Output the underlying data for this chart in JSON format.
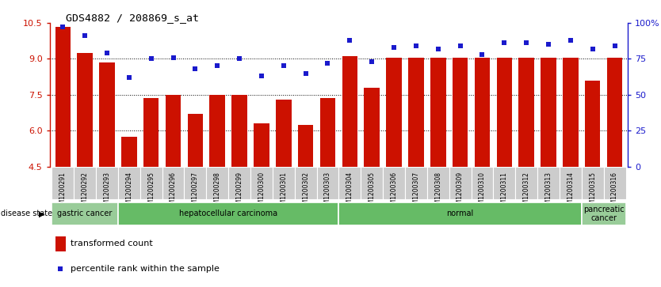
{
  "title": "GDS4882 / 208869_s_at",
  "samples": [
    "GSM1200291",
    "GSM1200292",
    "GSM1200293",
    "GSM1200294",
    "GSM1200295",
    "GSM1200296",
    "GSM1200297",
    "GSM1200298",
    "GSM1200299",
    "GSM1200300",
    "GSM1200301",
    "GSM1200302",
    "GSM1200303",
    "GSM1200304",
    "GSM1200305",
    "GSM1200306",
    "GSM1200307",
    "GSM1200308",
    "GSM1200309",
    "GSM1200310",
    "GSM1200311",
    "GSM1200312",
    "GSM1200313",
    "GSM1200314",
    "GSM1200315",
    "GSM1200316"
  ],
  "transformed_count": [
    10.35,
    9.25,
    8.85,
    5.75,
    7.35,
    7.5,
    6.7,
    7.5,
    7.5,
    6.3,
    7.3,
    6.25,
    7.35,
    9.1,
    7.8,
    9.05,
    9.05,
    9.05,
    9.05,
    9.05,
    9.05,
    9.05,
    9.05,
    9.05,
    8.1,
    9.05
  ],
  "percentile_rank": [
    97,
    91,
    79,
    62,
    75,
    76,
    68,
    70,
    75,
    63,
    70,
    65,
    72,
    88,
    73,
    83,
    84,
    82,
    84,
    78,
    86,
    86,
    85,
    88,
    82,
    84
  ],
  "ylim_left": [
    4.5,
    10.5
  ],
  "ylim_right": [
    0,
    100
  ],
  "yticks_left": [
    4.5,
    6.0,
    7.5,
    9.0,
    10.5
  ],
  "yticks_right": [
    0,
    25,
    50,
    75,
    100
  ],
  "ytick_labels_right": [
    "0",
    "25",
    "50",
    "75",
    "100%"
  ],
  "bar_color": "#cc1100",
  "dot_color": "#1a1acc",
  "disease_groups": [
    {
      "label": "gastric cancer",
      "start": 0,
      "end": 3,
      "color": "#99cc99"
    },
    {
      "label": "hepatocellular carcinoma",
      "start": 3,
      "end": 13,
      "color": "#66bb66"
    },
    {
      "label": "normal",
      "start": 13,
      "end": 24,
      "color": "#66bb66"
    },
    {
      "label": "pancreatic\ncancer",
      "start": 24,
      "end": 26,
      "color": "#99cc99"
    }
  ],
  "legend_bar_label": "transformed count",
  "legend_dot_label": "percentile rank within the sample",
  "xlabel_disease": "disease state",
  "background_color": "#ffffff",
  "plot_bg_color": "#ffffff",
  "tick_label_bg": "#cccccc"
}
